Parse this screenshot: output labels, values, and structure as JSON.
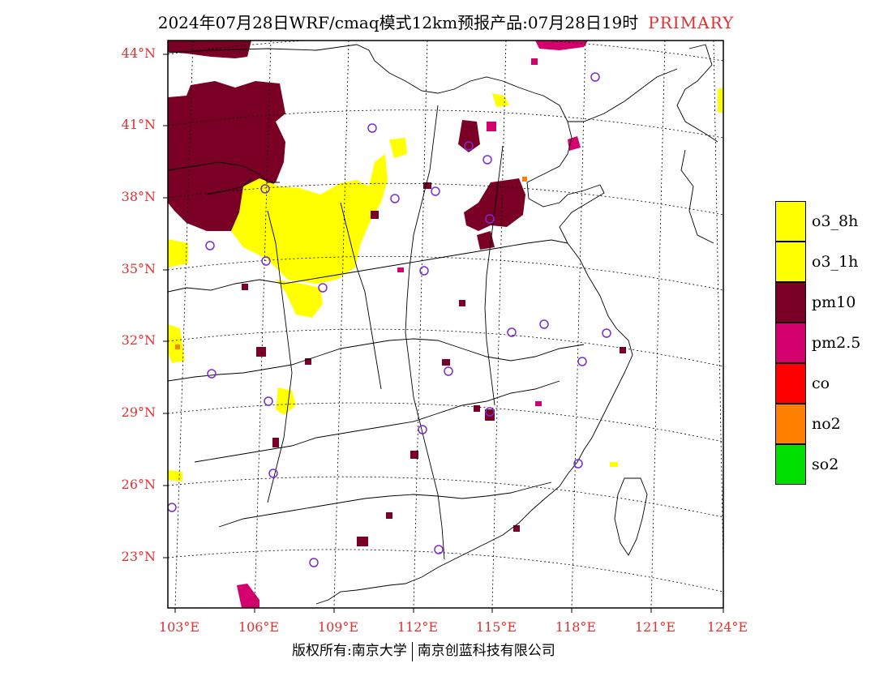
{
  "title": {
    "main": "2024年07月28日WRF/cmaq模式12km预报产品:07月28日19时",
    "tag": "PRIMARY"
  },
  "axes": {
    "latitudes": [
      "44°N",
      "41°N",
      "38°N",
      "35°N",
      "32°N",
      "29°N",
      "26°N",
      "23°N"
    ],
    "longitudes": [
      "103°E",
      "106°E",
      "109°E",
      "112°E",
      "115°E",
      "118°E",
      "121°E",
      "124°E"
    ]
  },
  "legend": [
    {
      "label": "o3_8h",
      "color": "#ffff00"
    },
    {
      "label": "o3_1h",
      "color": "#ffff00"
    },
    {
      "label": "pm10",
      "color": "#7a0025"
    },
    {
      "label": "pm2.5",
      "color": "#d4006e"
    },
    {
      "label": "co",
      "color": "#ff0000"
    },
    {
      "label": "no2",
      "color": "#ff7f00"
    },
    {
      "label": "so2",
      "color": "#00e000"
    }
  ],
  "footer": {
    "left": "版权所有:南京大学",
    "right": "南京创蓝科技有限公司"
  },
  "colors": {
    "axis_text": "#e03030",
    "station_marker": "#7b2cd6",
    "o3": "#ffff00",
    "pm10": "#7a0025",
    "pm25": "#d4006e"
  }
}
